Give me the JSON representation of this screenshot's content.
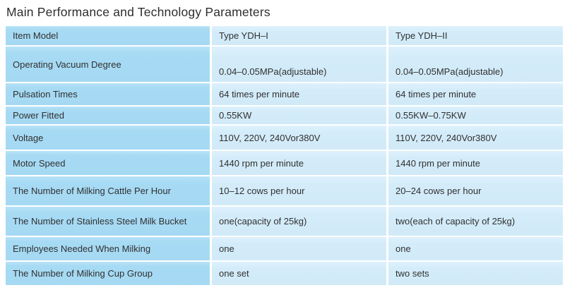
{
  "page": {
    "title": "Main Performance and Technology Parameters"
  },
  "colors": {
    "item_cell_blue": "#a7dbf4",
    "value_cell_blue": "#d4ecfa",
    "cell_border": "#ffffff",
    "text": "#303030",
    "title_text": "#2e2e2e",
    "background": "#ffffff"
  },
  "table": {
    "header": {
      "item": "Item Model",
      "col1": "Type YDH–I",
      "col2": "Type YDH–II"
    },
    "rows": [
      {
        "item": "Operating Vacuum Degree",
        "ydh1": "0.04–0.05MPa(adjustable)",
        "ydh2": "0.04–0.05MPa(adjustable)"
      },
      {
        "item": "Pulsation Times",
        "ydh1": "64 times per minute",
        "ydh2": "64 times per minute"
      },
      {
        "item": "Power Fitted",
        "ydh1": "0.55KW",
        "ydh2": "0.55KW–0.75KW"
      },
      {
        "item": "Voltage",
        "ydh1": "110V, 220V, 240Vor380V",
        "ydh2": "110V, 220V, 240Vor380V"
      },
      {
        "item": "Motor Speed",
        "ydh1": "1440 rpm per minute",
        "ydh2": "1440 rpm per minute"
      },
      {
        "item": "The Number of Milking Cattle Per Hour",
        "ydh1": "10–12 cows per hour",
        "ydh2": "20–24 cows per hour"
      },
      {
        "item": "The Number of Stainless Steel Milk Bucket",
        "ydh1": "one(capacity of 25kg)",
        "ydh2": "two(each of capacity of 25kg)"
      },
      {
        "item": "Employees Needed When Milking",
        "ydh1": "one",
        "ydh2": "one"
      },
      {
        "item": "The Number of Milking Cup Group",
        "ydh1": "one set",
        "ydh2": "two sets"
      }
    ]
  }
}
